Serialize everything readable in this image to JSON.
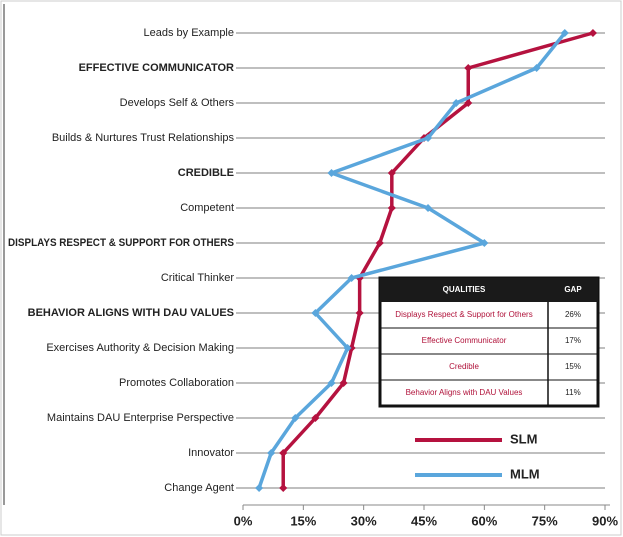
{
  "chart_data": {
    "type": "line",
    "categories": [
      "Leads by Example",
      "EFFECTIVE COMMUNICATOR",
      "Develops Self & Others",
      "Builds & Nurtures Trust Relationships",
      "CREDIBLE",
      "Competent",
      "DISPLAYS RESPECT & SUPPORT FOR OTHERS",
      "Critical Thinker",
      "BEHAVIOR ALIGNS WITH DAU VALUES",
      "Exercises Authority & Decision Making",
      "Promotes Collaboration",
      "Maintains DAU Enterprise Perspective",
      "Innovator",
      "Change Agent"
    ],
    "series": [
      {
        "name": "SLM",
        "color": "#b5123f",
        "values": [
          87,
          56,
          56,
          45,
          37,
          37,
          34,
          29,
          29,
          27,
          25,
          18,
          10,
          10
        ]
      },
      {
        "name": "MLM",
        "color": "#5aa6dc",
        "values": [
          80,
          73,
          53,
          46,
          22,
          46,
          60,
          27,
          18,
          26,
          22,
          13,
          7,
          4
        ]
      }
    ],
    "xlim": [
      0,
      90
    ],
    "xticks": [
      {
        "value": 0,
        "label": "0%"
      },
      {
        "value": 15,
        "label": "15%"
      },
      {
        "value": 30,
        "label": "30%"
      },
      {
        "value": 45,
        "label": "45%"
      },
      {
        "value": 60,
        "label": "60%"
      },
      {
        "value": 75,
        "label": "75%"
      },
      {
        "value": 90,
        "label": "90%"
      }
    ],
    "table": {
      "header": [
        "QUALITIES",
        "GAP"
      ],
      "rows": [
        [
          "Displays Respect & Support for Others",
          "26%"
        ],
        [
          "Effective Communicator",
          "17%"
        ],
        [
          "Credible",
          "15%"
        ],
        [
          "Behavior Aligns with DAU Values",
          "11%"
        ]
      ]
    }
  }
}
